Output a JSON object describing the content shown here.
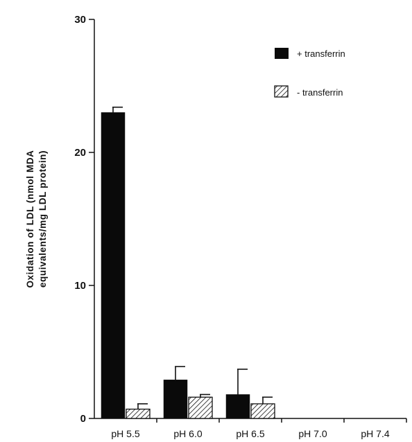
{
  "chart_data": {
    "type": "bar",
    "title": "",
    "xlabel": "",
    "ylabel_line1": "Oxidation of LDL (nmol MDA",
    "ylabel_line2": "equivalents/mg LDL protein)",
    "categories": [
      "pH 5.5",
      "pH 6.0",
      "pH 6.5",
      "pH 7.0",
      "pH 7.4"
    ],
    "series": [
      {
        "name": "+ transferrin",
        "pattern": "solid",
        "color": "#0a0a0a",
        "values": [
          23.0,
          2.9,
          1.8,
          0,
          0
        ],
        "errors": [
          0.4,
          1.0,
          1.9,
          0,
          0
        ]
      },
      {
        "name": "- transferrin",
        "pattern": "hatched",
        "color": "#0a0a0a",
        "values": [
          0.7,
          1.6,
          1.1,
          0,
          0
        ],
        "errors": [
          0.4,
          0.2,
          0.5,
          0,
          0
        ]
      }
    ],
    "ylim": [
      0,
      30
    ],
    "yticks": [
      0,
      10,
      20,
      30
    ],
    "grid": false,
    "legend_position": "top-right"
  }
}
